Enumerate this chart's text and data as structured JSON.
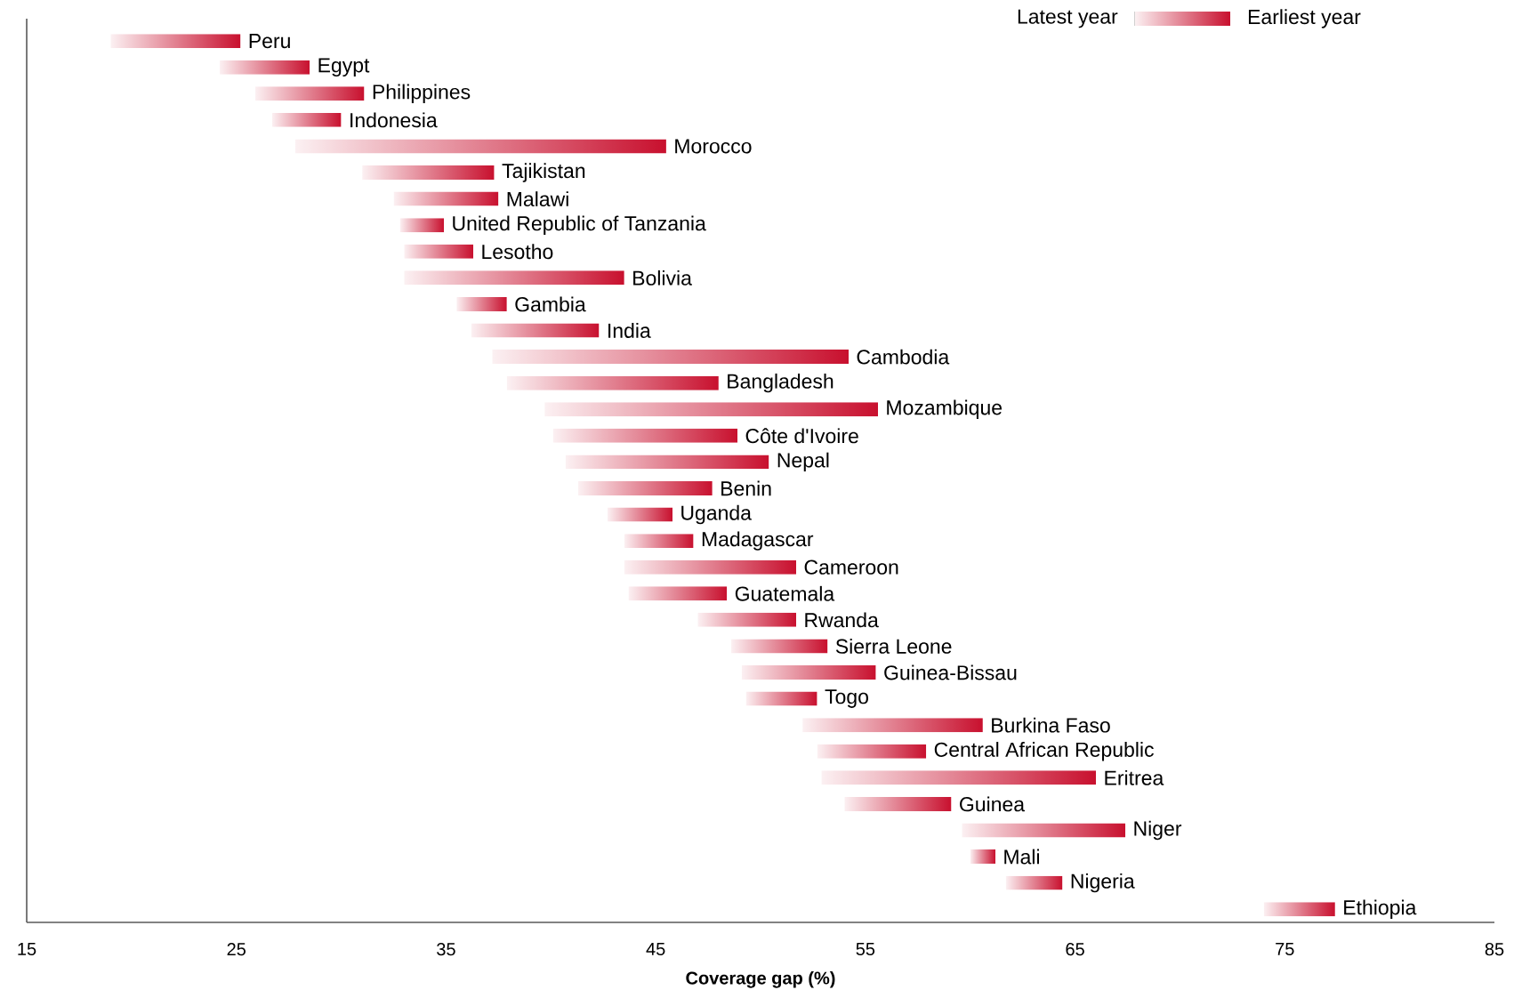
{
  "chart_data": {
    "type": "bar",
    "orientation": "horizontal",
    "xlabel": "Coverage gap (%)",
    "annotations": [
      "Latest year",
      "Earliest year"
    ],
    "categories": [
      "Peru",
      "Egypt",
      "Philippines",
      "Indonesia",
      "Morocco",
      "Tajikistan",
      "Malawi",
      "United Republic of Tanzania",
      "Lesotho",
      "Bolivia",
      "Gambia",
      "India",
      "Cambodia",
      "Bangladesh",
      "Mozambique",
      "Côte d'Ivoire",
      "Nepal",
      "Benin",
      "Uganda",
      "Madagascar",
      "Cameroon",
      "Guatemala",
      "Rwanda",
      "Sierra Leone",
      "Guinea-Bissau",
      "Togo",
      "Burkina Faso",
      "Central African Republic",
      "Eritrea",
      "Guinea",
      "Niger",
      "Mali",
      "Nigeria",
      "Ethiopia"
    ],
    "base": [
      19.0,
      24.2,
      25.9,
      26.7,
      27.8,
      31.0,
      32.5,
      32.8,
      33.0,
      33.0,
      35.5,
      36.2,
      37.2,
      37.9,
      39.7,
      40.1,
      40.7,
      41.3,
      42.7,
      43.5,
      43.5,
      43.7,
      47.0,
      48.6,
      49.1,
      49.3,
      52.0,
      52.7,
      52.9,
      54.0,
      59.6,
      60.0,
      61.7,
      74.0
    ],
    "values": [
      6.2,
      4.3,
      5.2,
      3.3,
      17.7,
      6.3,
      5.0,
      2.1,
      3.3,
      10.5,
      2.4,
      6.1,
      17.0,
      10.1,
      15.9,
      8.8,
      9.7,
      6.4,
      3.1,
      3.3,
      8.2,
      4.7,
      4.7,
      4.6,
      6.4,
      3.4,
      8.6,
      5.2,
      13.1,
      5.1,
      7.8,
      1.2,
      2.7,
      3.4
    ],
    "color": "#c8102e",
    "xlim": [
      15,
      85
    ],
    "xticks": [
      15,
      25,
      35,
      45,
      55,
      65,
      75,
      85
    ]
  }
}
